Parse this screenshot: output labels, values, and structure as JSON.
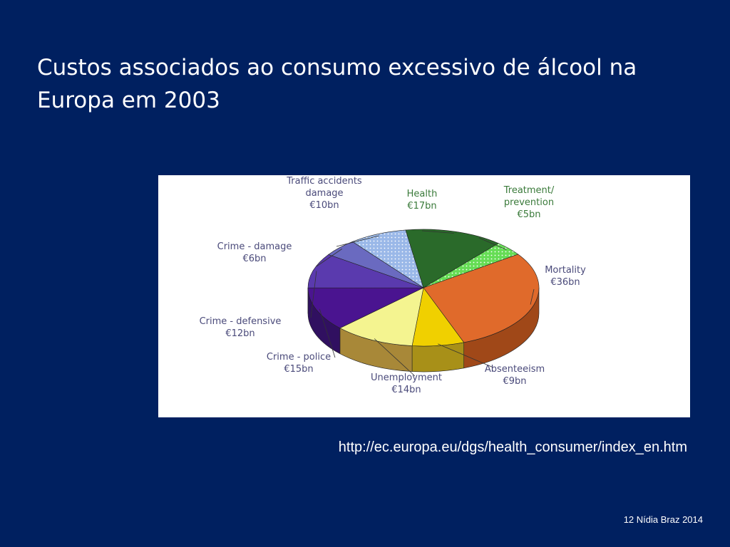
{
  "slide": {
    "title": "Custos associados ao consumo excessivo de álcool na Europa em 2003",
    "source_url": "http://ec.europa.eu/dgs/health_consumer/index_en.htm",
    "footer": "12 Nídia Braz 2014"
  },
  "chart_data": {
    "type": "pie",
    "style": "3d-exploded-labels-outside",
    "unit": "€bn",
    "slices": [
      {
        "label": [
          "Mortality"
        ],
        "value_label": "€36bn",
        "value": 36,
        "color": "#E06A2B",
        "side": "#A04818"
      },
      {
        "label": [
          "Absenteeism"
        ],
        "value_label": "€9bn",
        "value": 9,
        "color": "#F0D000",
        "side": "#A89018"
      },
      {
        "label": [
          "Unemployment"
        ],
        "value_label": "€14bn",
        "value": 14,
        "color": "#F4F490",
        "side": "#A88838"
      },
      {
        "label": [
          "Crime - police"
        ],
        "value_label": "€15bn",
        "value": 15,
        "color": "#4A1490",
        "side": "#301060"
      },
      {
        "label": [
          "Crime - defensive"
        ],
        "value_label": "€12bn",
        "value": 12,
        "color": "#5A3AAE",
        "side": "#3A2478"
      },
      {
        "label": [
          "Crime -  damage"
        ],
        "value_label": "€6bn",
        "value": 6,
        "color": "#6A6AC0",
        "side": "#484890"
      },
      {
        "label": [
          "Traffic accidents",
          "damage"
        ],
        "value_label": "€10bn",
        "value": 10,
        "color": "#9AB8E8",
        "side": "#7090C0",
        "pattern": "dots"
      },
      {
        "label": [
          "Health"
        ],
        "value_label": "€17bn",
        "value": 17,
        "color": "#2A6A2A",
        "side": "#1A4A1A",
        "label_color": "#3a7a3a"
      },
      {
        "label": [
          "Treatment/",
          "prevention"
        ],
        "value_label": "€5bn",
        "value": 5,
        "color": "#66DD55",
        "side": "#44A038",
        "label_color": "#3a7a3a",
        "pattern": "dots"
      }
    ]
  }
}
